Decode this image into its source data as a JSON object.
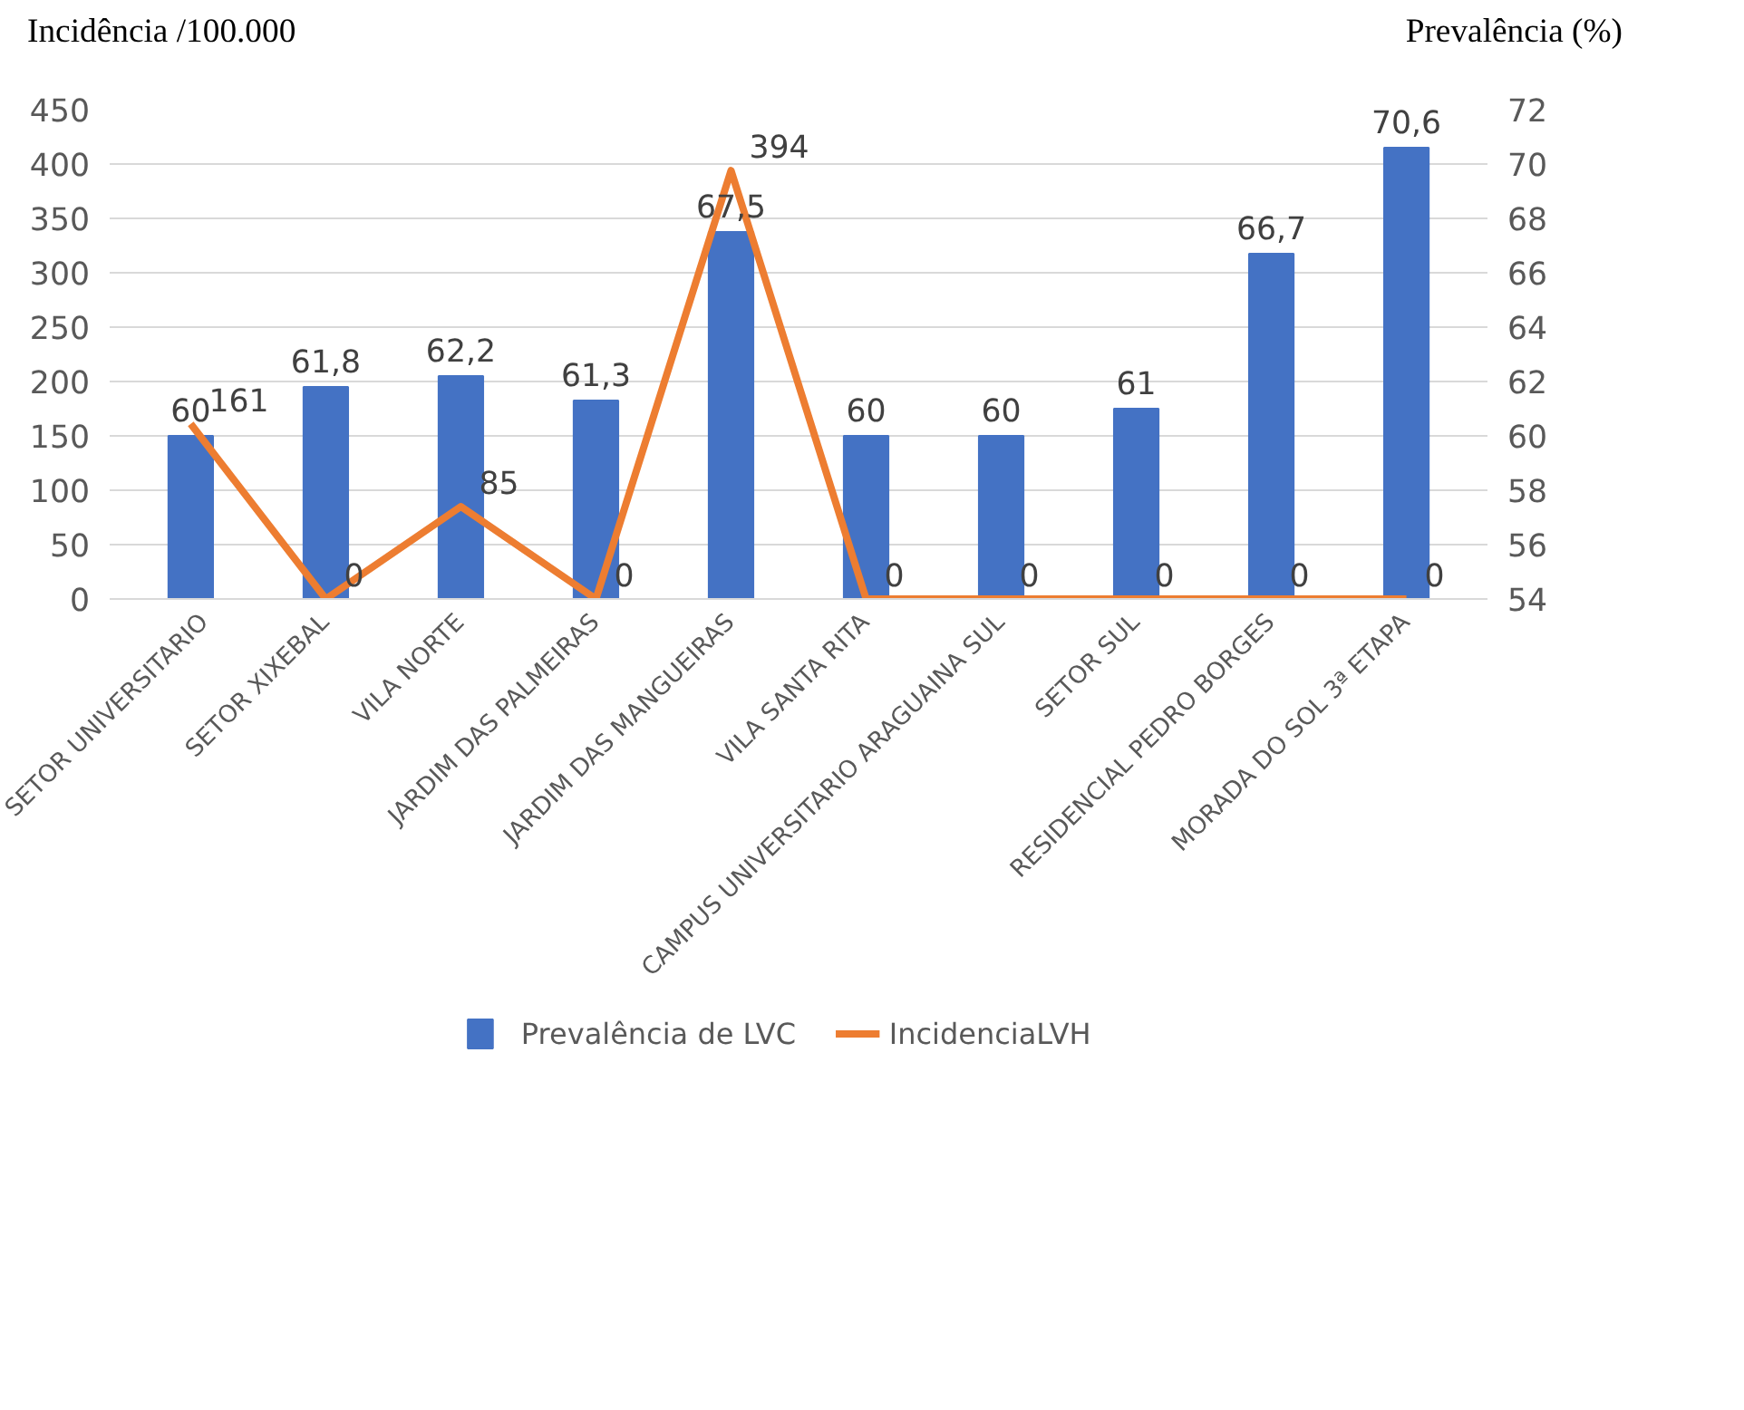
{
  "chart_data": {
    "type": "bar",
    "ylabel": "Incidência /100.000",
    "y2label": "Prevalência (%)",
    "categories": [
      "SETOR UNIVERSITARIO",
      "SETOR XIXEBAL",
      "VILA NORTE",
      "JARDIM DAS PALMEIRAS",
      "JARDIM DAS MANGUEIRAS",
      "VILA SANTA RITA",
      "CAMPUS UNIVERSITARIO ARAGUAINA SUL",
      "SETOR SUL",
      "RESIDENCIAL PEDRO BORGES",
      "MORADA DO SOL 3ª ETAPA"
    ],
    "series": [
      {
        "name": "Prevalência de LVC",
        "axis": "y2",
        "color": "#4472c4",
        "values": [
          60,
          61.8,
          62.2,
          61.3,
          67.5,
          60,
          60,
          61,
          66.7,
          70.6
        ],
        "value_labels": [
          "60",
          "61,8",
          "62,2",
          "61,3",
          "67,5",
          "60",
          "60",
          "61",
          "66,7",
          "70,6"
        ]
      },
      {
        "name": "IncidenciaLVH",
        "type": "line",
        "axis": "y",
        "color": "#ed7d31",
        "values": [
          161,
          0,
          85,
          0,
          394,
          0,
          0,
          0,
          0,
          0
        ],
        "value_labels": [
          "161",
          "0",
          "85",
          "0",
          "394",
          "0",
          "0",
          "0",
          "0",
          "0"
        ]
      }
    ],
    "ylim": [
      0,
      450
    ],
    "yticks": [
      0,
      50,
      100,
      150,
      200,
      250,
      300,
      350,
      400,
      450
    ],
    "y2lim": [
      54,
      72
    ],
    "y2ticks": [
      54,
      56,
      58,
      60,
      62,
      64,
      66,
      68,
      70,
      72
    ],
    "grid": "y",
    "legend": "bottom",
    "marker": "none",
    "line_style": "solid"
  }
}
